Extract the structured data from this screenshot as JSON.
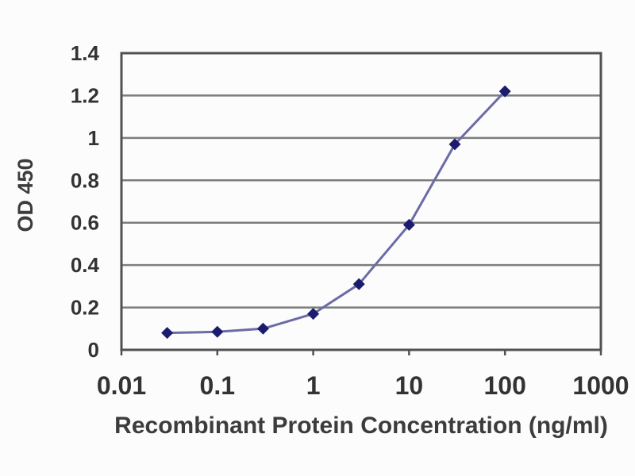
{
  "chart_data": {
    "type": "line",
    "title": "",
    "xlabel": "Recombinant Protein Concentration (ng/ml)",
    "ylabel": "OD 450",
    "x_scale": "log",
    "xlim": [
      0.01,
      1000
    ],
    "ylim": [
      0,
      1.4
    ],
    "x_ticks": [
      0.01,
      0.1,
      1,
      10,
      100,
      1000
    ],
    "x_tick_labels": [
      "0.01",
      "0.1",
      "1",
      "10",
      "100",
      "1000"
    ],
    "y_ticks": [
      0,
      0.2,
      0.4,
      0.6,
      0.8,
      1,
      1.2,
      1.4
    ],
    "y_tick_labels": [
      "0",
      "0.2",
      "0.4",
      "0.6",
      "0.8",
      "1",
      "1.2",
      "1.4"
    ],
    "grid": "horizontal",
    "legend": "none",
    "series": [
      {
        "x": [
          0.03,
          0.1,
          0.3,
          1,
          3,
          10,
          30,
          100
        ],
        "y": [
          0.08,
          0.085,
          0.1,
          0.17,
          0.31,
          0.59,
          0.97,
          1.22
        ],
        "marker": "diamond",
        "line_color": "#6b6ba6",
        "marker_color": "#1c1c6e"
      }
    ],
    "colors": {
      "background": "#fcfcfc",
      "grid": "#7d7d7d",
      "axis": "#515151",
      "text": "#333333"
    }
  }
}
